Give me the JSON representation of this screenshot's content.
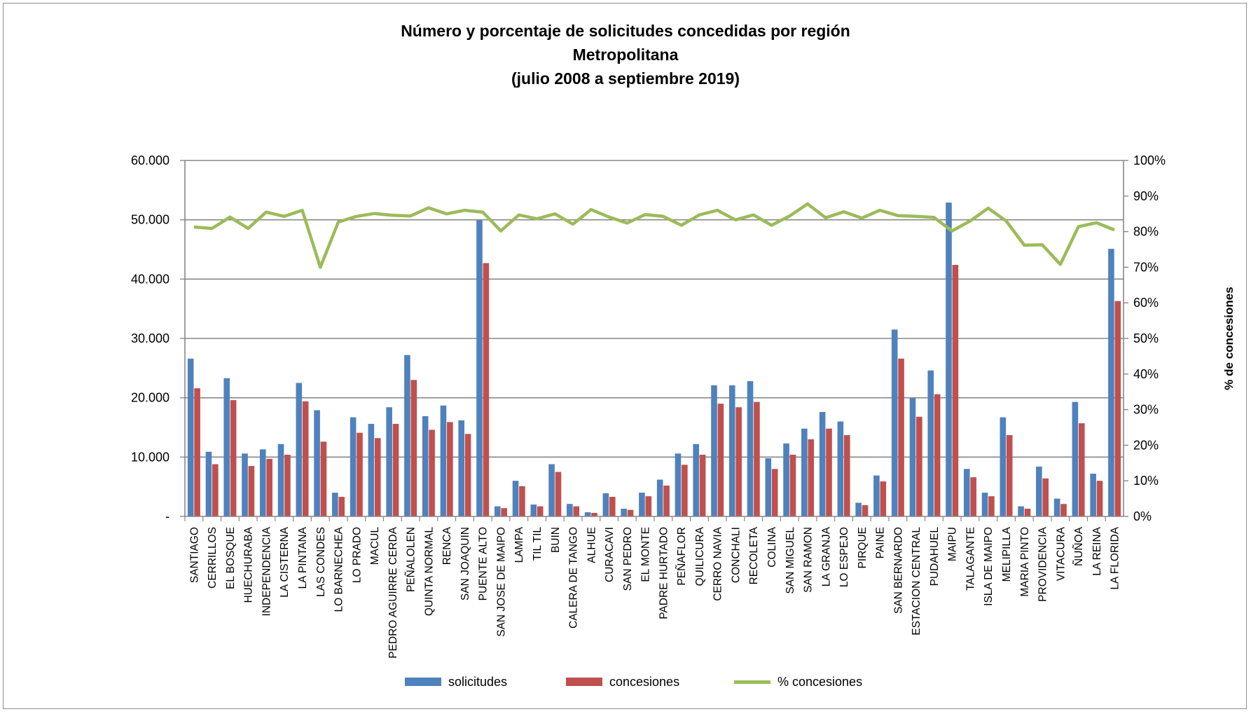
{
  "title_lines": [
    "Número y porcentaje de solicitudes concedidas por región",
    "Metropolitana",
    "(julio 2008 a septiembre 2019)"
  ],
  "colors": {
    "solicitudes": "#4f81bd",
    "concesiones": "#c0504d",
    "pct": "#9bbb59",
    "grid": "#878787"
  },
  "legend": {
    "solicitudes": "solicitudes",
    "concesiones": "concesiones",
    "pct": "% concesiones"
  },
  "chart_data": {
    "type": "bar",
    "title": "Número y porcentaje de solicitudes concedidas por región Metropolitana (julio 2008 a septiembre 2019)",
    "ylabel": "",
    "y2label": "% de concesiones",
    "ylim": [
      0,
      60000
    ],
    "y2lim": [
      0,
      100
    ],
    "y_ticks": [
      "-",
      "10.000",
      "20.000",
      "30.000",
      "40.000",
      "50.000",
      "60.000"
    ],
    "y2_ticks": [
      "0%",
      "10%",
      "20%",
      "30%",
      "40%",
      "50%",
      "60%",
      "70%",
      "80%",
      "90%",
      "100%"
    ],
    "grid": true,
    "legend_position": "bottom",
    "categories": [
      "SANTIAGO",
      "CERRILLOS",
      "EL BOSQUE",
      "HUECHURABA",
      "INDEPENDENCIA",
      "LA CISTERNA",
      "LA PINTANA",
      "LAS CONDES",
      "LO BARNECHEA",
      "LO PRADO",
      "MACUL",
      "PEDRO AGUIRRE CERDA",
      "PEÑALOLEN",
      "QUINTA NORMAL",
      "RENCA",
      "SAN JOAQUIN",
      "PUENTE ALTO",
      "SAN JOSE DE MAIPO",
      "LAMPA",
      "TIL TIL",
      "BUIN",
      "CALERA DE TANGO",
      "ALHUE",
      "CURACAVI",
      "SAN PEDRO",
      "EL MONTE",
      "PADRE HURTADO",
      "PEÑAFLOR",
      "QUILICURA",
      "CERRO NAVIA",
      "CONCHALI",
      "RECOLETA",
      "COLINA",
      "SAN MIGUEL",
      "SAN RAMON",
      "LA GRANJA",
      "LO ESPEJO",
      "PIRQUE",
      "PAINE",
      "SAN BERNARDO",
      "ESTACION CENTRAL",
      "PUDAHUEL",
      "MAIPU",
      "TALAGANTE",
      "ISLA DE MAIPO",
      "MELIPILLA",
      "MARIA PINTO",
      "PROVIDENCIA",
      "VITACURA",
      "ÑUÑOA",
      "LA REINA",
      "LA FLORIDA"
    ],
    "series": [
      {
        "name": "solicitudes",
        "type": "bar",
        "axis": "left",
        "values": [
          26600,
          10900,
          23300,
          10600,
          11300,
          12200,
          22500,
          17900,
          4000,
          16700,
          15600,
          18400,
          27200,
          16900,
          18700,
          16200,
          49900,
          1700,
          6000,
          2000,
          8800,
          2100,
          700,
          3900,
          1300,
          4000,
          6200,
          10600,
          12200,
          22100,
          22100,
          22800,
          9800,
          12300,
          14800,
          17600,
          16000,
          2300,
          6900,
          31500,
          19900,
          24600,
          52900,
          8000,
          4000,
          16700,
          1700,
          8400,
          3000,
          19300,
          7200,
          45100
        ]
      },
      {
        "name": "concesiones",
        "type": "bar",
        "axis": "right",
        "values": [
          21600,
          8800,
          19600,
          8500,
          9700,
          10400,
          19400,
          12600,
          3300,
          14100,
          13200,
          15600,
          23000,
          14600,
          15900,
          13900,
          42700,
          1400,
          5100,
          1700,
          7500,
          1700,
          600,
          3300,
          1100,
          3400,
          5200,
          8700,
          10400,
          19000,
          18400,
          19300,
          8000,
          10400,
          13000,
          14800,
          13700,
          1900,
          5900,
          26600,
          16800,
          20600,
          42400,
          6600,
          3400,
          13700,
          1300,
          6400,
          2100,
          15700,
          6000,
          36300
        ]
      },
      {
        "name": "% concesiones",
        "type": "line",
        "axis": "right",
        "values": [
          81.3,
          80.9,
          84.1,
          80.9,
          85.5,
          84.3,
          86.0,
          70.0,
          82.7,
          84.3,
          85.1,
          84.6,
          84.4,
          86.7,
          85.0,
          86.0,
          85.5,
          80.2,
          84.7,
          83.6,
          85.0,
          82.1,
          86.2,
          84.1,
          82.4,
          84.8,
          84.3,
          81.8,
          84.7,
          86.0,
          83.3,
          84.7,
          81.8,
          84.4,
          87.8,
          83.9,
          85.6,
          83.8,
          86.0,
          84.5,
          84.3,
          84.0,
          80.2,
          83.0,
          86.6,
          83.0,
          76.2,
          76.3,
          70.8,
          81.4,
          82.5,
          80.5
        ]
      }
    ]
  }
}
